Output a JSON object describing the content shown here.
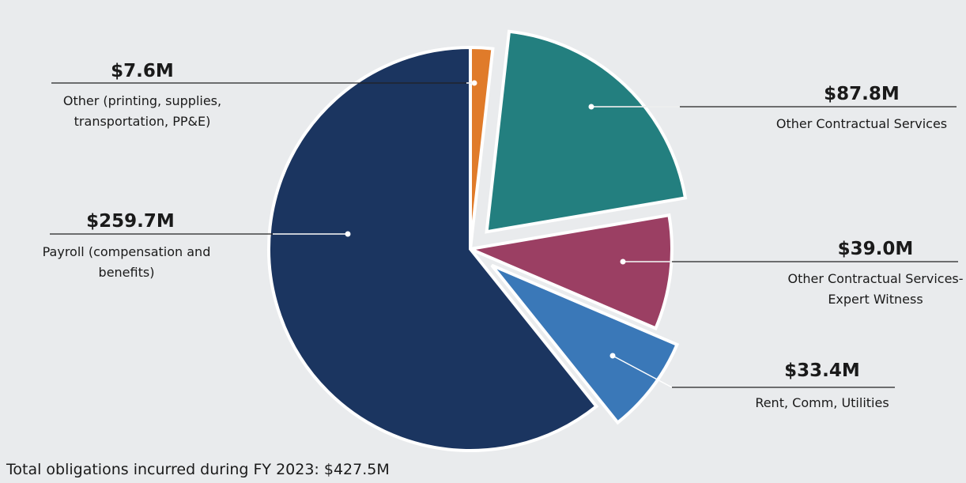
{
  "chart_data": {
    "type": "pie",
    "categories": [
      "Other (printing, supplies, transportation, PP&E)",
      "Other Contractual Services",
      "Other Contractual Services-Expert Witness",
      "Rent, Comm, Utilities",
      "Payroll (compensation and benefits)"
    ],
    "values": [
      7.6,
      87.8,
      39,
      33.4,
      259.7
    ],
    "value_labels": [
      "$7.6M",
      "$87.8M",
      "$39.0M",
      "$33.4M",
      "$259.7M"
    ],
    "colors": [
      "#e07b2a",
      "#237f7f",
      "#9b3f63",
      "#3a78b8",
      "#1b3560"
    ],
    "note": "Total obligations incurred during FY 2023: $427.5M"
  }
}
